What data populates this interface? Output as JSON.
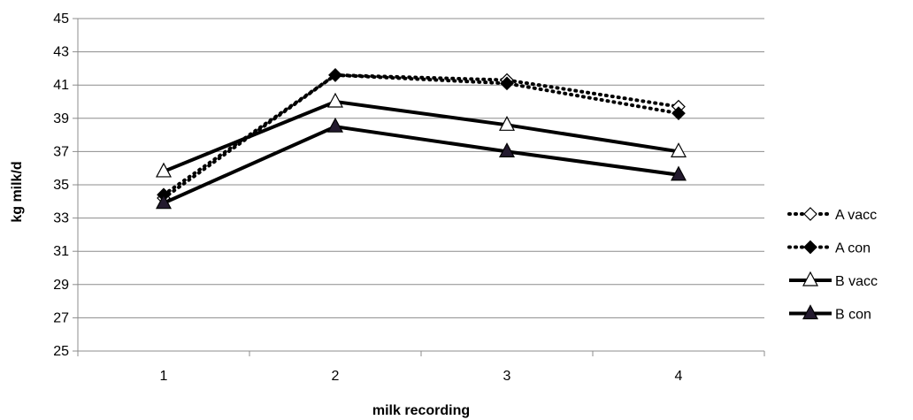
{
  "chart_data": {
    "type": "line",
    "title": "",
    "xlabel": "milk recording",
    "ylabel": "kg milk/d",
    "categories": [
      "1",
      "2",
      "3",
      "4"
    ],
    "ylim": [
      25,
      45
    ],
    "yticks": [
      "25",
      "27",
      "29",
      "31",
      "33",
      "35",
      "37",
      "39",
      "41",
      "43",
      "45"
    ],
    "grid": true,
    "legend_position": "right",
    "series": [
      {
        "name": "A vacc",
        "values": [
          34.2,
          41.6,
          41.3,
          39.7
        ],
        "line": "dotted",
        "marker": "diamond",
        "marker_fill": "#ffffff",
        "color": "#000000"
      },
      {
        "name": "A con",
        "values": [
          34.4,
          41.6,
          41.1,
          39.3
        ],
        "line": "dotted",
        "marker": "diamond",
        "marker_fill": "#000000",
        "color": "#000000"
      },
      {
        "name": "B vacc",
        "values": [
          35.8,
          40.0,
          38.6,
          37.0
        ],
        "line": "solid",
        "marker": "triangle",
        "marker_fill": "#ffffff",
        "color": "#000000"
      },
      {
        "name": "B con",
        "values": [
          33.9,
          38.5,
          37.0,
          35.6
        ],
        "line": "solid",
        "marker": "triangle",
        "marker_fill": "#231a2e",
        "color": "#000000"
      }
    ]
  }
}
